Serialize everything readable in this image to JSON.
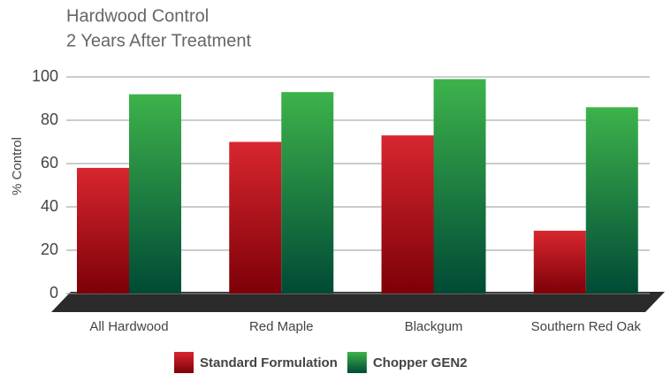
{
  "chart_data": {
    "type": "bar",
    "title": "Hardwood Control",
    "subtitle": "2 Years After Treatment",
    "y_label": "% Control",
    "categories": [
      "All Hardwood",
      "Red Maple",
      "Blackgum",
      "Southern Red Oak"
    ],
    "series": [
      {
        "name": "Standard Formulation",
        "color": "#d8262f",
        "values": [
          58,
          70,
          73,
          29
        ]
      },
      {
        "name": "Chopper GEN2",
        "color": "#3db34b",
        "values": [
          92,
          93,
          99,
          86
        ]
      }
    ],
    "ylim": [
      0,
      100
    ],
    "yticks": [
      0,
      20,
      40,
      60,
      80,
      100
    ],
    "grid": true
  }
}
